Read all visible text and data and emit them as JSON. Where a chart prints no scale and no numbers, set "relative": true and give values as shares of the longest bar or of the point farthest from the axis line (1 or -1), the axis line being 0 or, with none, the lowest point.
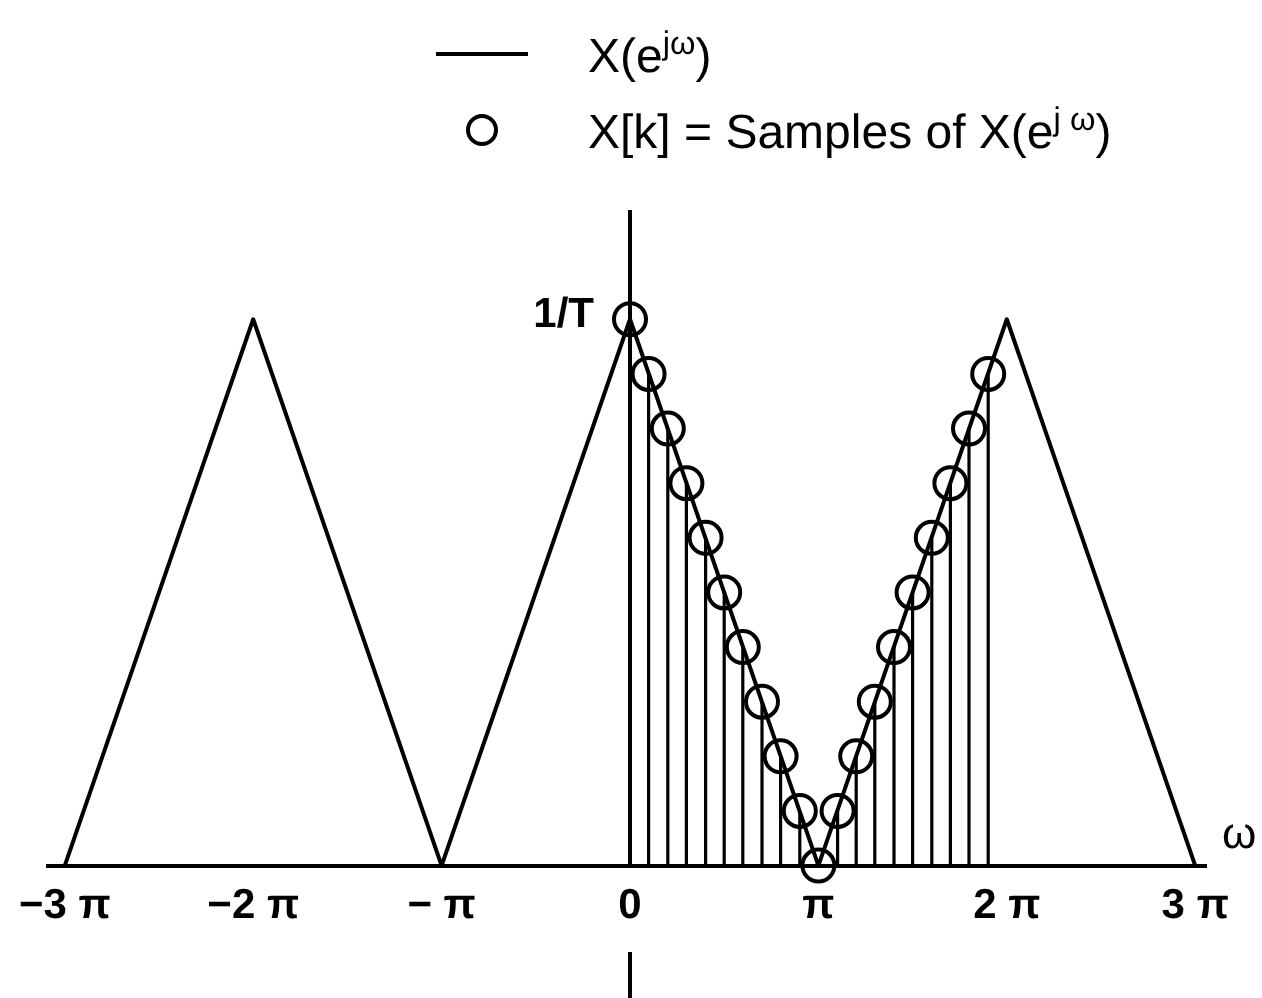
{
  "chart_data": {
    "type": "line",
    "relative": true,
    "xlabel": "ω",
    "legend": "top",
    "x": [
      -9.42,
      -6.28,
      -3.14,
      0,
      3.14,
      6.28,
      9.42
    ],
    "xlim": [
      -9.7,
      9.6
    ],
    "xticks": [
      {
        "value": -9.42,
        "label": "−3 π"
      },
      {
        "value": -6.28,
        "label": "−2 π"
      },
      {
        "value": -3.14,
        "label": "− π"
      },
      0,
      {
        "value": 3.14,
        "label": "π"
      },
      {
        "value": 6.28,
        "label": "2 π"
      },
      {
        "value": 9.42,
        "label": "3 π"
      }
    ],
    "series": [
      {
        "name": "X(e$^{jω}$)",
        "color": "#000000",
        "marker": "none",
        "values": [
          0,
          1,
          0,
          1,
          0,
          1,
          0
        ]
      },
      {
        "name": "X[k] = Samples of X(e$^{j ω}$)",
        "type": "lollipop",
        "color": "#000000",
        "marker": "circle",
        "x": [
          0,
          0.31,
          0.63,
          0.94,
          1.26,
          1.57,
          1.88,
          2.2,
          2.51,
          2.83,
          3.14,
          3.46,
          3.77,
          4.08,
          4.4,
          4.71,
          5.03,
          5.34,
          5.65,
          5.97
        ],
        "values": [
          1,
          0.9,
          0.8,
          0.7,
          0.6,
          0.5,
          0.4,
          0.3,
          0.2,
          0.1,
          0,
          0.1,
          0.2,
          0.3,
          0.4,
          0.5,
          0.6,
          0.7,
          0.8,
          0.9
        ]
      }
    ],
    "annotations": [
      {
        "text": "1/T",
        "x": 0,
        "y": 1
      }
    ]
  }
}
